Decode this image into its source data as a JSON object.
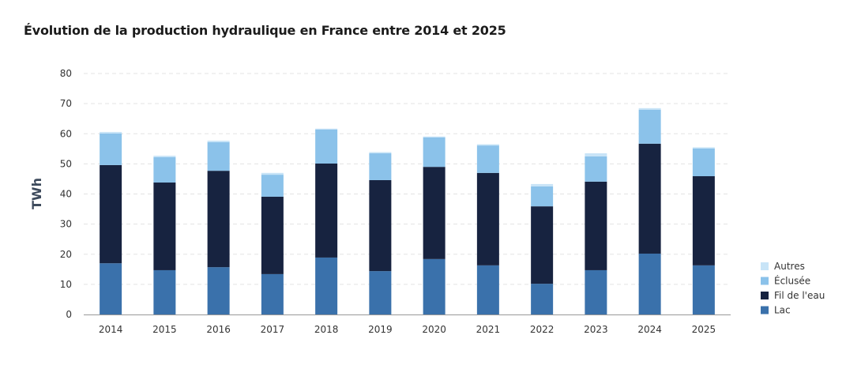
{
  "chart_data": {
    "type": "bar",
    "stacked": true,
    "title": "Évolution de la production hydraulique en France entre 2014 et 2025",
    "xlabel": "",
    "ylabel": "TWh",
    "ylim": [
      0,
      80
    ],
    "yticks": [
      0,
      10,
      20,
      30,
      40,
      50,
      60,
      70,
      80
    ],
    "grid": true,
    "legend_position": "bottom-right",
    "categories": [
      "2014",
      "2015",
      "2016",
      "2017",
      "2018",
      "2019",
      "2020",
      "2021",
      "2022",
      "2023",
      "2024",
      "2025"
    ],
    "series": [
      {
        "name": "Lac",
        "color": "#3a71ab",
        "values": [
          17.0,
          14.7,
          15.7,
          13.4,
          18.9,
          14.4,
          18.4,
          16.3,
          10.2,
          14.7,
          20.2,
          16.3
        ]
      },
      {
        "name": "Fil de l'eau",
        "color": "#172340",
        "values": [
          32.6,
          29.1,
          32.0,
          25.7,
          31.2,
          30.2,
          30.6,
          30.7,
          25.7,
          29.4,
          36.5,
          29.6
        ]
      },
      {
        "name": "Éclusée",
        "color": "#8bc2ea",
        "values": [
          10.5,
          8.4,
          9.5,
          7.3,
          11.3,
          8.9,
          9.8,
          9.1,
          6.6,
          8.4,
          11.3,
          9.2
        ]
      },
      {
        "name": "Autres",
        "color": "#c8e4f7",
        "values": [
          0.5,
          0.5,
          0.5,
          0.6,
          0.3,
          0.4,
          0.3,
          0.4,
          0.8,
          1.0,
          0.5,
          0.4
        ]
      }
    ]
  }
}
